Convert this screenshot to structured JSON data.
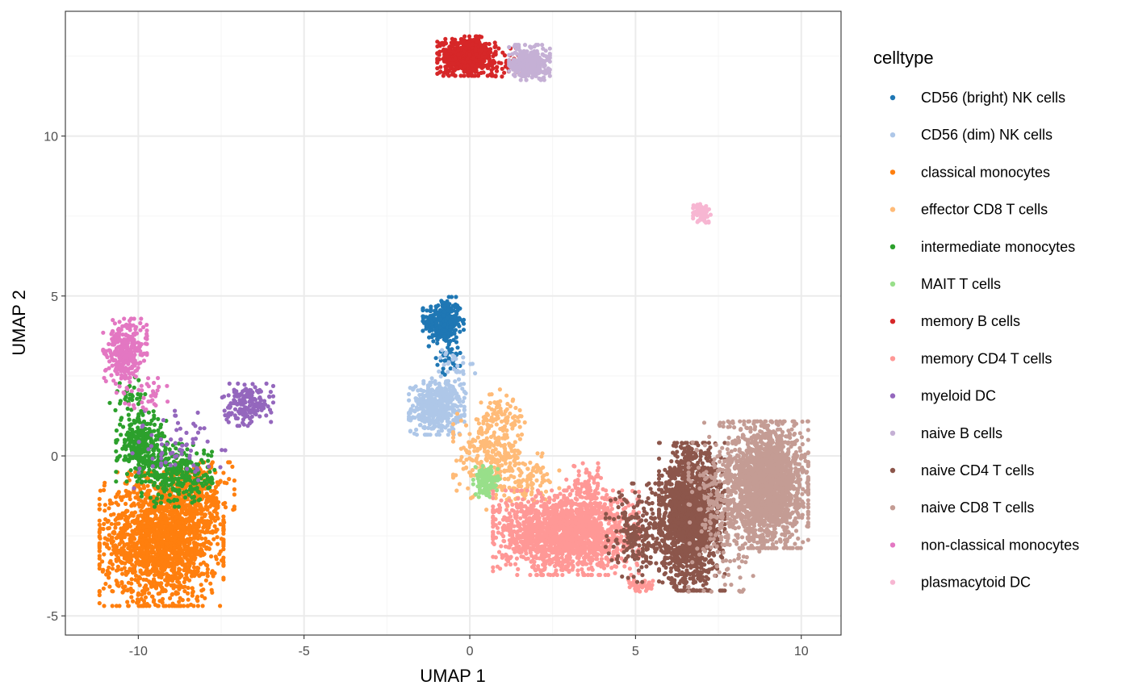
{
  "chart_data": {
    "type": "scatter",
    "xlabel": "UMAP 1",
    "ylabel": "UMAP 2",
    "xlim": [
      -12.2,
      11.2
    ],
    "ylim": [
      -5.6,
      13.9
    ],
    "x_ticks": [
      -10,
      -5,
      0,
      5,
      10
    ],
    "x_tick_labels": [
      "-10",
      "-5",
      "0",
      "5",
      "10"
    ],
    "y_ticks": [
      -5,
      0,
      5,
      10
    ],
    "y_tick_labels": [
      "-5",
      "0",
      "5",
      "10"
    ],
    "grid": true,
    "legend": {
      "title": "celltype",
      "position": "right"
    },
    "series": [
      {
        "name": "CD56 (bright) NK cells",
        "color": "#1f77b4",
        "clusters": [
          {
            "cx": -0.8,
            "cy": 4.2,
            "sx": 0.28,
            "sy": 0.35,
            "n": 300
          },
          {
            "cx": -0.6,
            "cy": 3.2,
            "sx": 0.2,
            "sy": 0.3,
            "n": 40
          }
        ]
      },
      {
        "name": "CD56 (dim) NK cells",
        "color": "#aec7e8",
        "clusters": [
          {
            "cx": -1.0,
            "cy": 1.5,
            "sx": 0.38,
            "sy": 0.38,
            "n": 450
          },
          {
            "cx": -0.5,
            "cy": 2.6,
            "sx": 0.3,
            "sy": 0.4,
            "n": 35
          }
        ]
      },
      {
        "name": "classical monocytes",
        "color": "#ff7f0e",
        "clusters": [
          {
            "cx": -9.3,
            "cy": -2.6,
            "sx": 0.85,
            "sy": 0.95,
            "n": 1800
          },
          {
            "cx": -8.2,
            "cy": -1.3,
            "sx": 0.5,
            "sy": 0.5,
            "n": 250
          }
        ]
      },
      {
        "name": "effector CD8 T cells",
        "color": "#ffbb78",
        "clusters": [
          {
            "cx": 0.6,
            "cy": 0.0,
            "sx": 0.5,
            "sy": 0.6,
            "n": 250
          },
          {
            "cx": 1.6,
            "cy": -0.8,
            "sx": 0.5,
            "sy": 0.4,
            "n": 120
          },
          {
            "cx": 1.0,
            "cy": 1.2,
            "sx": 0.3,
            "sy": 0.4,
            "n": 80
          }
        ]
      },
      {
        "name": "intermediate monocytes",
        "color": "#2ca02c",
        "clusters": [
          {
            "cx": -9.9,
            "cy": 0.3,
            "sx": 0.35,
            "sy": 0.5,
            "n": 280
          },
          {
            "cx": -8.8,
            "cy": -0.6,
            "sx": 0.5,
            "sy": 0.45,
            "n": 280
          },
          {
            "cx": -10.2,
            "cy": 1.8,
            "sx": 0.3,
            "sy": 0.3,
            "n": 40
          }
        ]
      },
      {
        "name": "MAIT T cells",
        "color": "#98df8a",
        "clusters": [
          {
            "cx": 0.5,
            "cy": -0.8,
            "sx": 0.18,
            "sy": 0.22,
            "n": 110
          }
        ]
      },
      {
        "name": "memory B cells",
        "color": "#d62728",
        "clusters": [
          {
            "cx": -0.1,
            "cy": 12.5,
            "sx": 0.4,
            "sy": 0.28,
            "n": 650
          },
          {
            "cx": 1.0,
            "cy": 12.3,
            "sx": 0.3,
            "sy": 0.2,
            "n": 50
          }
        ]
      },
      {
        "name": "memory CD4 T cells",
        "color": "#ff9896",
        "clusters": [
          {
            "cx": 2.9,
            "cy": -2.4,
            "sx": 1.0,
            "sy": 0.6,
            "n": 1700
          },
          {
            "cx": 3.5,
            "cy": -1.0,
            "sx": 0.3,
            "sy": 0.35,
            "n": 100
          },
          {
            "cx": 5.2,
            "cy": -4.1,
            "sx": 0.2,
            "sy": 0.1,
            "n": 40
          }
        ]
      },
      {
        "name": "myeloid DC",
        "color": "#9467bd",
        "clusters": [
          {
            "cx": -6.7,
            "cy": 1.6,
            "sx": 0.35,
            "sy": 0.3,
            "n": 180
          },
          {
            "cx": -8.8,
            "cy": 0.2,
            "sx": 0.7,
            "sy": 0.55,
            "n": 70
          }
        ]
      },
      {
        "name": "naive B cells",
        "color": "#c5b0d5",
        "clusters": [
          {
            "cx": 1.8,
            "cy": 12.3,
            "sx": 0.28,
            "sy": 0.25,
            "n": 330
          }
        ]
      },
      {
        "name": "naive CD4 T cells",
        "color": "#8c564b",
        "clusters": [
          {
            "cx": 6.7,
            "cy": -1.9,
            "sx": 0.45,
            "sy": 1.05,
            "n": 1600
          },
          {
            "cx": 5.2,
            "cy": -2.4,
            "sx": 0.5,
            "sy": 0.7,
            "n": 250
          }
        ]
      },
      {
        "name": "naive CD8 T cells",
        "color": "#c49c94",
        "clusters": [
          {
            "cx": 9.0,
            "cy": -0.9,
            "sx": 0.55,
            "sy": 0.9,
            "n": 1900
          },
          {
            "cx": 7.7,
            "cy": -1.6,
            "sx": 0.5,
            "sy": 1.2,
            "n": 300
          }
        ]
      },
      {
        "name": "non-classical monocytes",
        "color": "#e377c2",
        "clusters": [
          {
            "cx": -10.4,
            "cy": 3.3,
            "sx": 0.3,
            "sy": 0.45,
            "n": 320
          },
          {
            "cx": -9.8,
            "cy": 2.0,
            "sx": 0.4,
            "sy": 0.25,
            "n": 40
          }
        ]
      },
      {
        "name": "plasmacytoid DC",
        "color": "#f7b6d2",
        "clusters": [
          {
            "cx": 7.0,
            "cy": 7.6,
            "sx": 0.12,
            "sy": 0.14,
            "n": 80
          }
        ]
      }
    ]
  },
  "style": {
    "panel_border": "#333333",
    "grid_major": "#ebebeb",
    "grid_minor": "#f5f5f5",
    "tick_color": "#333333"
  }
}
